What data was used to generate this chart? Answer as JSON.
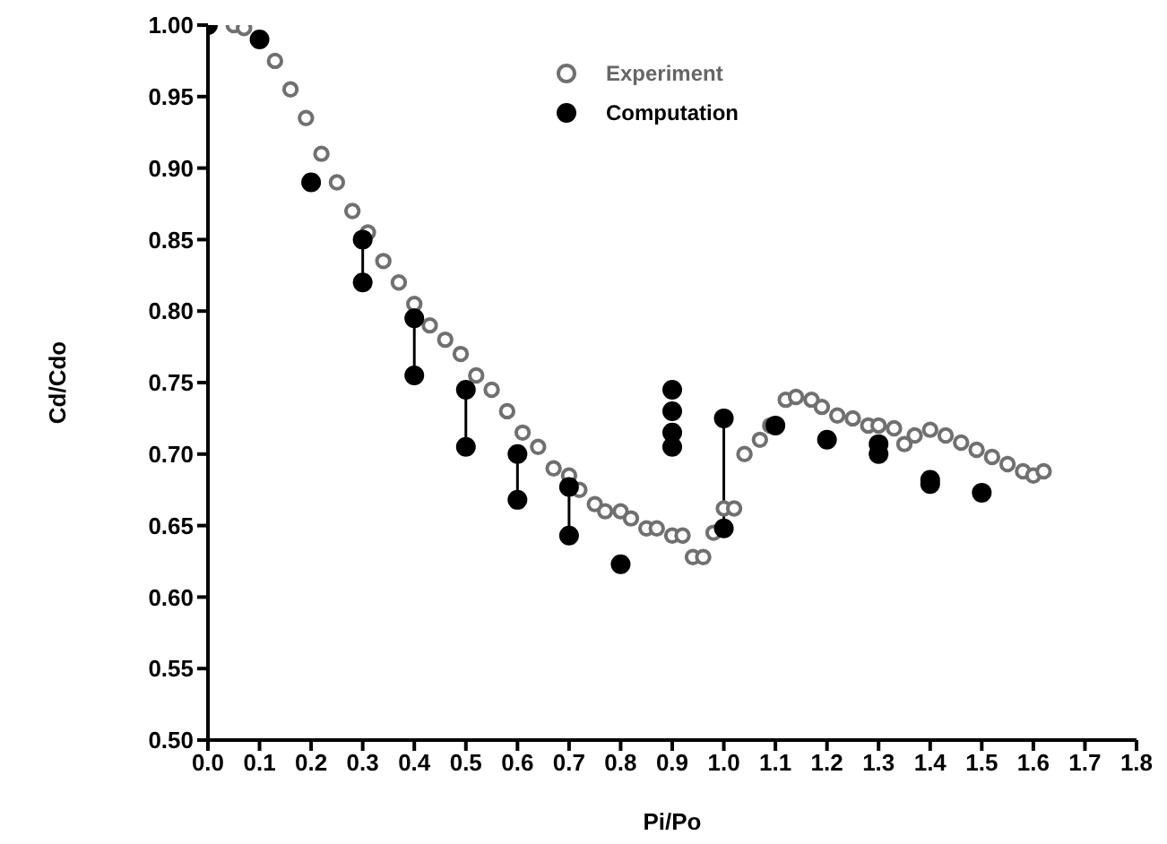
{
  "chart_data": {
    "type": "scatter",
    "xlabel": "Pi/Po",
    "ylabel": "Cd/Cdo",
    "xlim": [
      0,
      1.8
    ],
    "ylim": [
      0.5,
      1.0
    ],
    "xticks": [
      {
        "value": 0,
        "label": "0.0"
      },
      0.1,
      0.2,
      0.3,
      0.4,
      0.5,
      0.6,
      0.7,
      0.8,
      0.9,
      {
        "value": 1,
        "label": "1.0"
      },
      1.1,
      1.2,
      1.3,
      1.4,
      1.5,
      1.6,
      1.7,
      1.8
    ],
    "yticks": [
      {
        "value": 0.5,
        "label": "0.50"
      },
      0.55,
      {
        "value": 0.6,
        "label": "0.60"
      },
      0.65,
      {
        "value": 0.7,
        "label": "0.70"
      },
      0.75,
      {
        "value": 0.8,
        "label": "0.80"
      },
      0.85,
      {
        "value": 0.9,
        "label": "0.90"
      },
      0.95,
      {
        "value": 1,
        "label": "1.00"
      }
    ],
    "grid": false,
    "legend": "top",
    "marker": "circle",
    "series": [
      {
        "name": "Experiment",
        "color": "#707070",
        "x": [
          0.05,
          0.07,
          0.13,
          0.16,
          0.19,
          0.22,
          0.25,
          0.28,
          0.31,
          0.34,
          0.37,
          0.4,
          0.43,
          0.46,
          0.49,
          0.52,
          0.55,
          0.58,
          0.61,
          0.64,
          0.67,
          0.7,
          0.72,
          0.75,
          0.77,
          0.8,
          0.82,
          0.85,
          0.87,
          0.9,
          0.92,
          0.94,
          0.96,
          0.98,
          1.0,
          1.02,
          1.04,
          1.07,
          1.09,
          1.12,
          1.14,
          1.17,
          1.19,
          1.22,
          1.25,
          1.28,
          1.3,
          1.33,
          1.35,
          1.37,
          1.4,
          1.43,
          1.46,
          1.49,
          1.52,
          1.55,
          1.58,
          1.6,
          1.62
        ],
        "values": [
          1.0,
          0.998,
          0.975,
          0.955,
          0.935,
          0.91,
          0.89,
          0.87,
          0.855,
          0.835,
          0.82,
          0.805,
          0.79,
          0.78,
          0.77,
          0.755,
          0.745,
          0.73,
          0.715,
          0.705,
          0.69,
          0.685,
          0.675,
          0.665,
          0.66,
          0.66,
          0.655,
          0.648,
          0.648,
          0.643,
          0.643,
          0.628,
          0.628,
          0.645,
          0.662,
          0.662,
          0.7,
          0.71,
          0.72,
          0.738,
          0.74,
          0.738,
          0.733,
          0.727,
          0.725,
          0.72,
          0.72,
          0.718,
          0.707,
          0.713,
          0.717,
          0.713,
          0.708,
          0.703,
          0.698,
          0.693,
          0.688,
          0.685,
          0.688
        ]
      },
      {
        "name": "Computation",
        "color": "#000000",
        "x": [
          0,
          0.1,
          0.2,
          0.3,
          0.3,
          0.4,
          0.4,
          0.5,
          0.5,
          0.6,
          0.6,
          0.7,
          0.7,
          0.8,
          0.9,
          0.9,
          0.9,
          0.9,
          1.0,
          1.0,
          1.1,
          1.2,
          1.3,
          1.3,
          1.4,
          1.4,
          1.5
        ],
        "values": [
          1.0,
          0.99,
          0.89,
          0.85,
          0.82,
          0.795,
          0.755,
          0.745,
          0.705,
          0.7,
          0.668,
          0.677,
          0.643,
          0.623,
          0.745,
          0.73,
          0.715,
          0.705,
          0.725,
          0.648,
          0.72,
          0.71,
          0.707,
          0.7,
          0.682,
          0.679,
          0.673
        ]
      },
      {
        "type": "line",
        "marker": "none",
        "color": "#000000",
        "x": [
          0.3,
          0.3
        ],
        "values": [
          0.85,
          0.82
        ]
      },
      {
        "type": "line",
        "marker": "none",
        "color": "#000000",
        "x": [
          0.4,
          0.4
        ],
        "values": [
          0.795,
          0.755
        ]
      },
      {
        "type": "line",
        "marker": "none",
        "color": "#000000",
        "x": [
          0.5,
          0.5
        ],
        "values": [
          0.745,
          0.705
        ]
      },
      {
        "type": "line",
        "marker": "none",
        "color": "#000000",
        "x": [
          0.6,
          0.6
        ],
        "values": [
          0.7,
          0.668
        ]
      },
      {
        "type": "line",
        "marker": "none",
        "color": "#000000",
        "x": [
          0.7,
          0.7
        ],
        "values": [
          0.677,
          0.643
        ]
      },
      {
        "type": "line",
        "marker": "none",
        "color": "#000000",
        "x": [
          1.0,
          1.0
        ],
        "values": [
          0.725,
          0.648
        ]
      }
    ]
  }
}
